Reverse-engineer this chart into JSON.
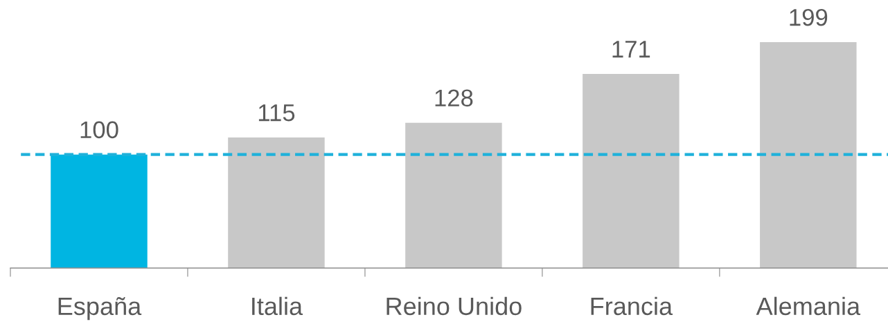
{
  "chart_data": {
    "type": "bar",
    "categories": [
      "España",
      "Italia",
      "Reino Unido",
      "Francia",
      "Alemania"
    ],
    "values": [
      100,
      115,
      128,
      171,
      199
    ],
    "colors": [
      "#00b5e2",
      "#c8c8c8",
      "#c8c8c8",
      "#c8c8c8",
      "#c8c8c8"
    ],
    "tick_labels": "x",
    "data_labels": true,
    "ref_lines": [
      {
        "axis": "y",
        "value": 100,
        "color": "#1fb1da",
        "line_style": "dashed"
      }
    ]
  }
}
